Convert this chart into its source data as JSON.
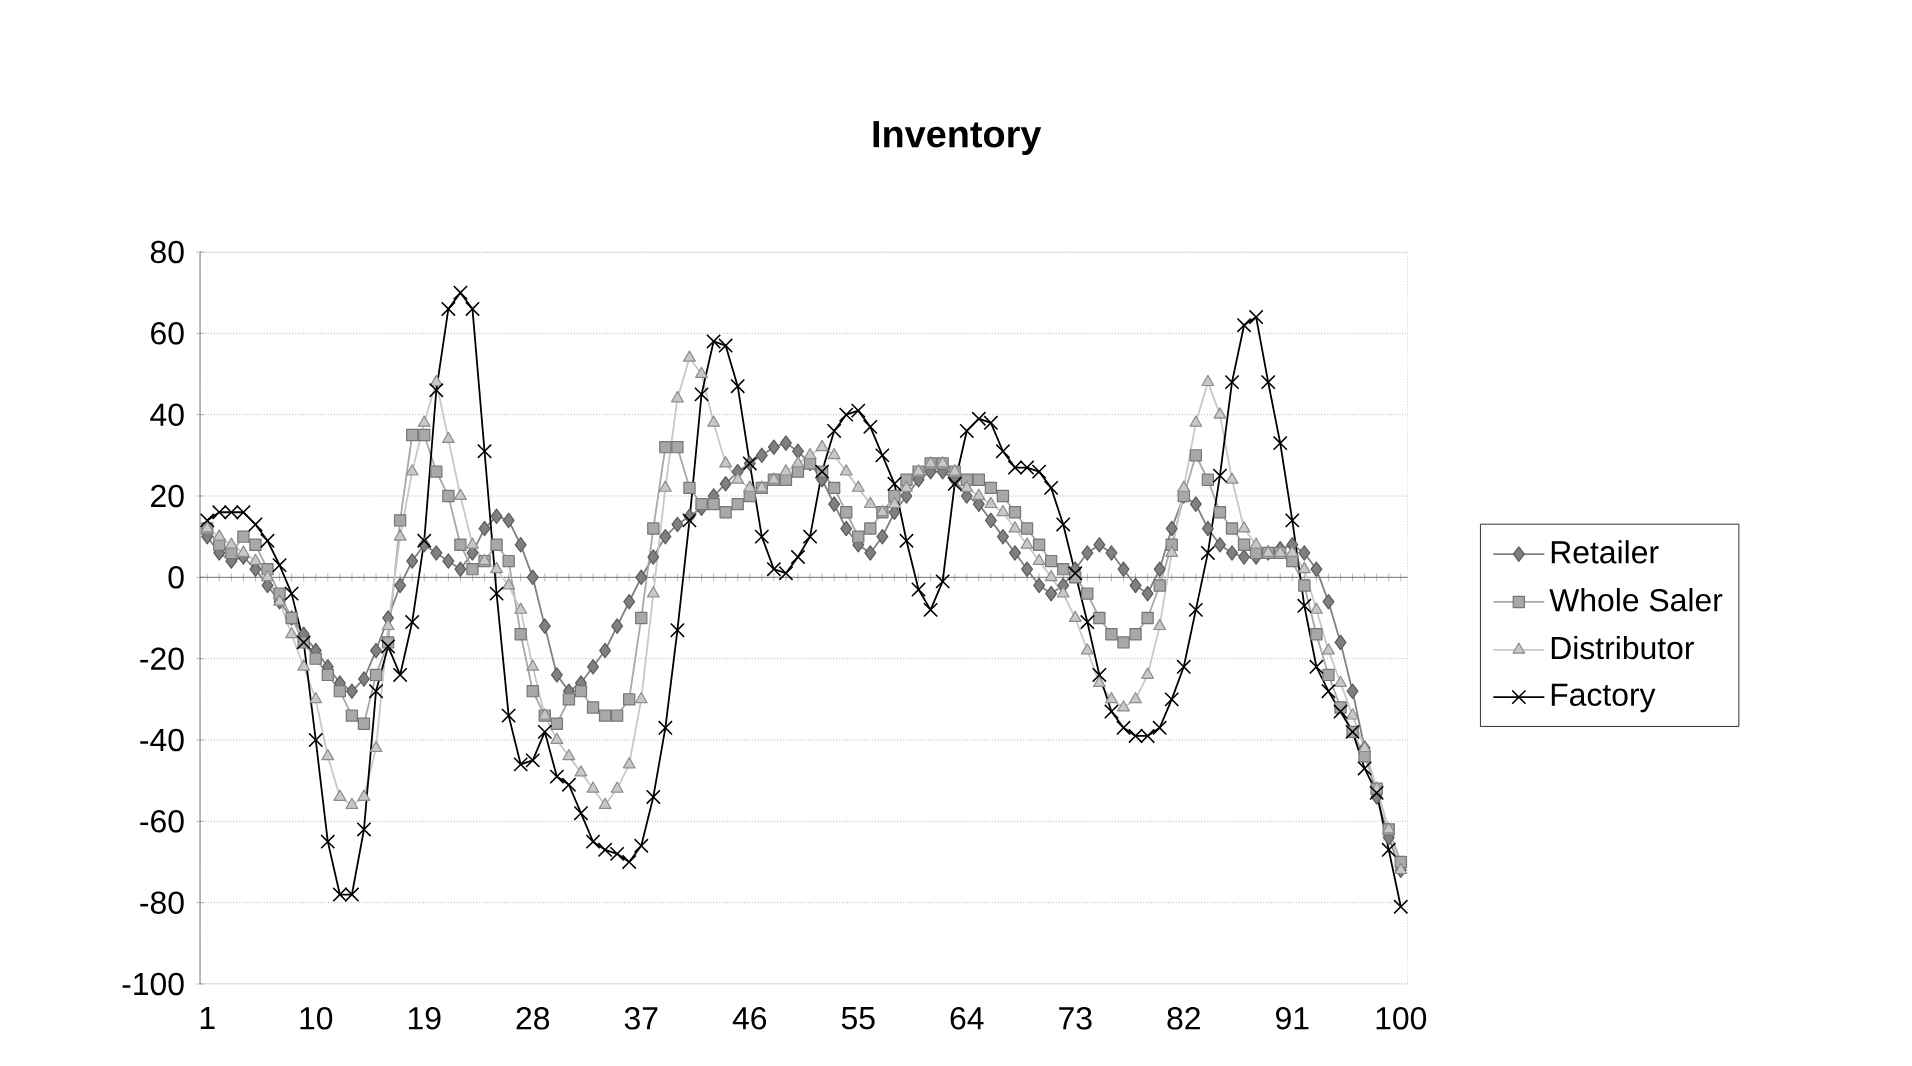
{
  "chart_data": {
    "type": "line",
    "title": "Inventory",
    "categories": [
      "1",
      null,
      null,
      null,
      null,
      null,
      null,
      null,
      null,
      "10",
      null,
      null,
      null,
      null,
      null,
      null,
      null,
      null,
      "19",
      null,
      null,
      null,
      null,
      null,
      null,
      null,
      null,
      "28",
      null,
      null,
      null,
      null,
      null,
      null,
      null,
      null,
      "37",
      null,
      null,
      null,
      null,
      null,
      null,
      null,
      null,
      "46",
      null,
      null,
      null,
      null,
      null,
      null,
      null,
      null,
      "55",
      null,
      null,
      null,
      null,
      null,
      null,
      null,
      null,
      "64",
      null,
      null,
      null,
      null,
      null,
      null,
      null,
      null,
      "73",
      null,
      null,
      null,
      null,
      null,
      null,
      null,
      null,
      "82",
      null,
      null,
      null,
      null,
      null,
      null,
      null,
      null,
      "91",
      null,
      null,
      null,
      null,
      null,
      null,
      null,
      null,
      "100"
    ],
    "series": [
      {
        "name": "Retailer",
        "color": "#808080",
        "marker": "diamond",
        "values": [
          10,
          6,
          4,
          5,
          2,
          -2,
          -6,
          -10,
          -14,
          -18,
          -22,
          -26,
          -28,
          -25,
          -18,
          -10,
          -2,
          4,
          8,
          6,
          4,
          2,
          6,
          12,
          15,
          14,
          8,
          0,
          -12,
          -24,
          -28,
          -26,
          -22,
          -18,
          -12,
          -6,
          0,
          5,
          10,
          13,
          15,
          17,
          20,
          23,
          26,
          28,
          30,
          32,
          33,
          31,
          28,
          24,
          18,
          12,
          8,
          6,
          10,
          16,
          20,
          24,
          26,
          26,
          24,
          20,
          18,
          14,
          10,
          6,
          2,
          -2,
          -4,
          -2,
          2,
          6,
          8,
          6,
          2,
          -2,
          -4,
          2,
          12,
          20,
          18,
          12,
          8,
          6,
          5,
          5,
          6,
          7,
          8,
          6,
          2,
          -6,
          -16,
          -28,
          -42,
          -54,
          -64,
          -72
        ]
      },
      {
        "name": "Whole Saler",
        "color": "#a8a8a8",
        "marker": "square",
        "values": [
          12,
          8,
          6,
          10,
          8,
          2,
          -4,
          -10,
          -16,
          -20,
          -24,
          -28,
          -34,
          -36,
          -24,
          -16,
          14,
          35,
          35,
          26,
          20,
          8,
          2,
          4,
          8,
          4,
          -14,
          -28,
          -34,
          -36,
          -30,
          -28,
          -32,
          -34,
          -34,
          -30,
          -10,
          12,
          32,
          32,
          22,
          18,
          18,
          16,
          18,
          20,
          22,
          24,
          24,
          26,
          28,
          26,
          22,
          16,
          10,
          12,
          16,
          20,
          24,
          26,
          28,
          28,
          26,
          24,
          24,
          22,
          20,
          16,
          12,
          8,
          4,
          2,
          0,
          -4,
          -10,
          -14,
          -16,
          -14,
          -10,
          -2,
          8,
          20,
          30,
          24,
          16,
          12,
          8,
          6,
          6,
          6,
          4,
          -2,
          -14,
          -24,
          -32,
          -38,
          -44,
          -52,
          -62,
          -70
        ]
      },
      {
        "name": "Distributor",
        "color": "#c8c8c8",
        "marker": "triangle",
        "values": [
          12,
          10,
          8,
          6,
          4,
          0,
          -6,
          -14,
          -22,
          -30,
          -44,
          -54,
          -56,
          -54,
          -42,
          -12,
          10,
          26,
          38,
          48,
          34,
          20,
          8,
          4,
          2,
          -2,
          -8,
          -22,
          -34,
          -40,
          -44,
          -48,
          -52,
          -56,
          -52,
          -46,
          -30,
          -4,
          22,
          44,
          54,
          50,
          38,
          28,
          24,
          22,
          22,
          24,
          26,
          28,
          30,
          32,
          30,
          26,
          22,
          18,
          16,
          18,
          22,
          26,
          28,
          28,
          26,
          22,
          20,
          18,
          16,
          12,
          8,
          4,
          0,
          -4,
          -10,
          -18,
          -26,
          -30,
          -32,
          -30,
          -24,
          -12,
          6,
          22,
          38,
          48,
          40,
          24,
          12,
          8,
          6,
          6,
          6,
          2,
          -8,
          -18,
          -26,
          -34,
          -42,
          -52,
          -62,
          -72
        ]
      },
      {
        "name": "Factory",
        "color": "#000000",
        "marker": "cross",
        "values": [
          14,
          16,
          16,
          16,
          13,
          9,
          3,
          -4,
          -16,
          -40,
          -65,
          -78,
          -78,
          -62,
          -28,
          -17,
          -24,
          -11,
          9,
          46,
          66,
          70,
          66,
          31,
          -4,
          -34,
          -46,
          -45,
          -38,
          -49,
          -51,
          -58,
          -65,
          -67,
          -68,
          -70,
          -66,
          -54,
          -37,
          -13,
          14,
          45,
          58,
          57,
          47,
          28,
          10,
          2,
          1,
          5,
          10,
          26,
          36,
          40,
          41,
          37,
          30,
          23,
          9,
          -3,
          -8,
          -1,
          23,
          36,
          39,
          38,
          31,
          27,
          27,
          26,
          22,
          13,
          1,
          -11,
          -24,
          -33,
          -37,
          -39,
          -39,
          -37,
          -30,
          -22,
          -8,
          6,
          25,
          48,
          62,
          64,
          48,
          33,
          14,
          -7,
          -22,
          -28,
          -33,
          -38,
          -47,
          -53,
          -67,
          -81
        ]
      }
    ],
    "ylim": [
      -100,
      80
    ],
    "yticks": [
      -100,
      -80,
      -60,
      -40,
      -20,
      0,
      20,
      40,
      60,
      80
    ],
    "grid": "y",
    "legend": "right"
  }
}
